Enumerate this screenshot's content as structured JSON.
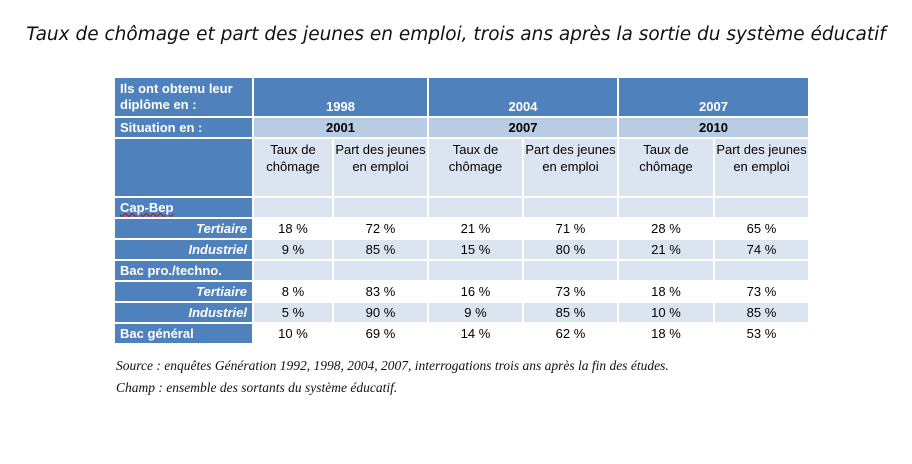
{
  "title": "Taux de chômage et part des jeunes en emploi, trois ans après la sortie du système éducatif",
  "table": {
    "diploma_label": "Ils ont obtenu leur diplôme en :",
    "diploma_years": [
      "1998",
      "2004",
      "2007"
    ],
    "situation_label": "Situation en :",
    "situation_years": [
      "2001",
      "2007",
      "2010"
    ],
    "col_unemployment": "Taux de chômage",
    "col_employment": "Part des jeunes en emploi",
    "groups": [
      {
        "label": "Cap-Bep",
        "rows": [
          {
            "label": "Tertiaire",
            "values": [
              "18 %",
              "72 %",
              "21 %",
              "71 %",
              "28 %",
              "65 %"
            ]
          },
          {
            "label": "Industriel",
            "values": [
              "9 %",
              "85 %",
              "15 %",
              "80 %",
              "21 %",
              "74 %"
            ]
          }
        ]
      },
      {
        "label": "Bac pro./techno.",
        "rows": [
          {
            "label": "Tertiaire",
            "values": [
              "8 %",
              "83 %",
              "16 %",
              "73 %",
              "18 %",
              "73 %"
            ]
          },
          {
            "label": "Industriel",
            "values": [
              "5 %",
              "90 %",
              "9 %",
              "85 %",
              "10 %",
              "85 %"
            ]
          }
        ]
      }
    ],
    "bac_general": {
      "label": "Bac général",
      "values": [
        "10 %",
        "69 %",
        "14 %",
        "62 %",
        "18 %",
        "53 %"
      ]
    }
  },
  "notes": {
    "source": "Source : enquêtes Génération 1992, 1998, 2004, 2007, interrogations trois ans après la fin des études.",
    "scope": "Champ : ensemble des sortants du système éducatif."
  }
}
